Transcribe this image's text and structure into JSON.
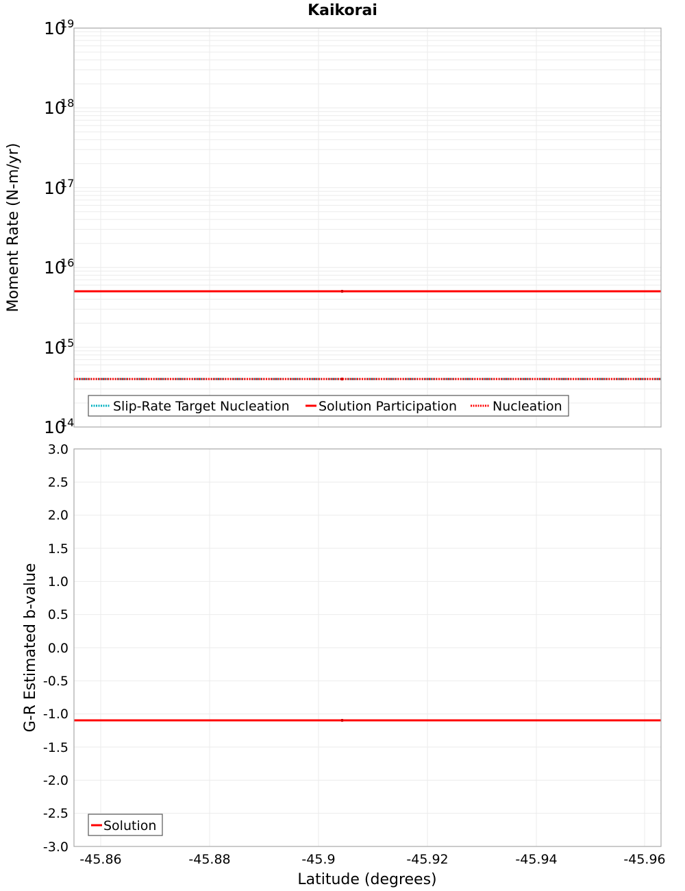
{
  "title": "Kaikorai",
  "colors": {
    "solution": "#ff0000",
    "target": "#00b0c0",
    "grid": "#ebebeb",
    "frame": "#a8a8a8"
  },
  "top_panel": {
    "ylabel": "Moment Rate (N-m/yr)",
    "y_ticks": [
      {
        "base": "10",
        "exp": "19"
      },
      {
        "base": "10",
        "exp": "18"
      },
      {
        "base": "10",
        "exp": "17"
      },
      {
        "base": "10",
        "exp": "16"
      },
      {
        "base": "10",
        "exp": "15"
      },
      {
        "base": "10",
        "exp": "14"
      }
    ],
    "legend": [
      {
        "label": "Slip-Rate Target Nucleation"
      },
      {
        "label": "Solution Participation"
      },
      {
        "label": "Nucleation"
      }
    ]
  },
  "bottom_panel": {
    "ylabel": "G-R Estimated b-value",
    "y_ticks": [
      "3.0",
      "2.5",
      "2.0",
      "1.5",
      "1.0",
      "0.5",
      "0.0",
      "-0.5",
      "-1.0",
      "-1.5",
      "-2.0",
      "-2.5",
      "-3.0"
    ],
    "legend": [
      {
        "label": "Solution"
      }
    ]
  },
  "x_axis": {
    "xlabel": "Latitude (degrees)",
    "ticks": [
      "-45.86",
      "-45.88",
      "-45.9",
      "-45.92",
      "-45.94",
      "-45.96"
    ]
  },
  "chart_data": [
    {
      "type": "line",
      "title": "Kaikorai",
      "xlabel": "Latitude (degrees)",
      "ylabel": "Moment Rate (N-m/yr)",
      "yscale": "log",
      "ylim": [
        100000000000000.0,
        1e+19
      ],
      "xlim": [
        -45.855,
        -45.963
      ],
      "x_reversed": true,
      "grid": true,
      "legend_position": "lower left",
      "y_tick_labels": [
        "10^14",
        "10^15",
        "10^16",
        "10^17",
        "10^18",
        "10^19"
      ],
      "x_tick_labels": [
        "-45.86",
        "-45.88",
        "-45.9",
        "-45.92",
        "-45.94",
        "-45.96"
      ],
      "series": [
        {
          "name": "Slip-Rate Target Nucleation",
          "style": "dotted",
          "color": "#00b0c0",
          "x": [
            -45.855,
            -45.905,
            -45.963
          ],
          "values": [
            400000000000000.0,
            400000000000000.0,
            400000000000000.0
          ]
        },
        {
          "name": "Solution Participation",
          "style": "solid",
          "color": "#ff0000",
          "x": [
            -45.855,
            -45.905,
            -45.963
          ],
          "values": [
            5000000000000000.0,
            5000000000000000.0,
            5000000000000000.0
          ]
        },
        {
          "name": "Nucleation",
          "style": "dotted",
          "color": "#ff0000",
          "x": [
            -45.855,
            -45.905,
            -45.963
          ],
          "values": [
            400000000000000.0,
            400000000000000.0,
            400000000000000.0
          ]
        }
      ]
    },
    {
      "type": "line",
      "xlabel": "Latitude (degrees)",
      "ylabel": "G-R Estimated b-value",
      "ylim": [
        -3.0,
        3.0
      ],
      "xlim": [
        -45.855,
        -45.963
      ],
      "x_reversed": true,
      "grid": true,
      "legend_position": "lower left",
      "y_tick_labels": [
        "-3.0",
        "-2.5",
        "-2.0",
        "-1.5",
        "-1.0",
        "-0.5",
        "0.0",
        "0.5",
        "1.0",
        "1.5",
        "2.0",
        "2.5",
        "3.0"
      ],
      "x_tick_labels": [
        "-45.86",
        "-45.88",
        "-45.9",
        "-45.92",
        "-45.94",
        "-45.96"
      ],
      "series": [
        {
          "name": "Solution",
          "style": "solid",
          "color": "#ff0000",
          "x": [
            -45.855,
            -45.905,
            -45.963
          ],
          "values": [
            -1.1,
            -1.1,
            -1.1
          ]
        }
      ]
    }
  ]
}
